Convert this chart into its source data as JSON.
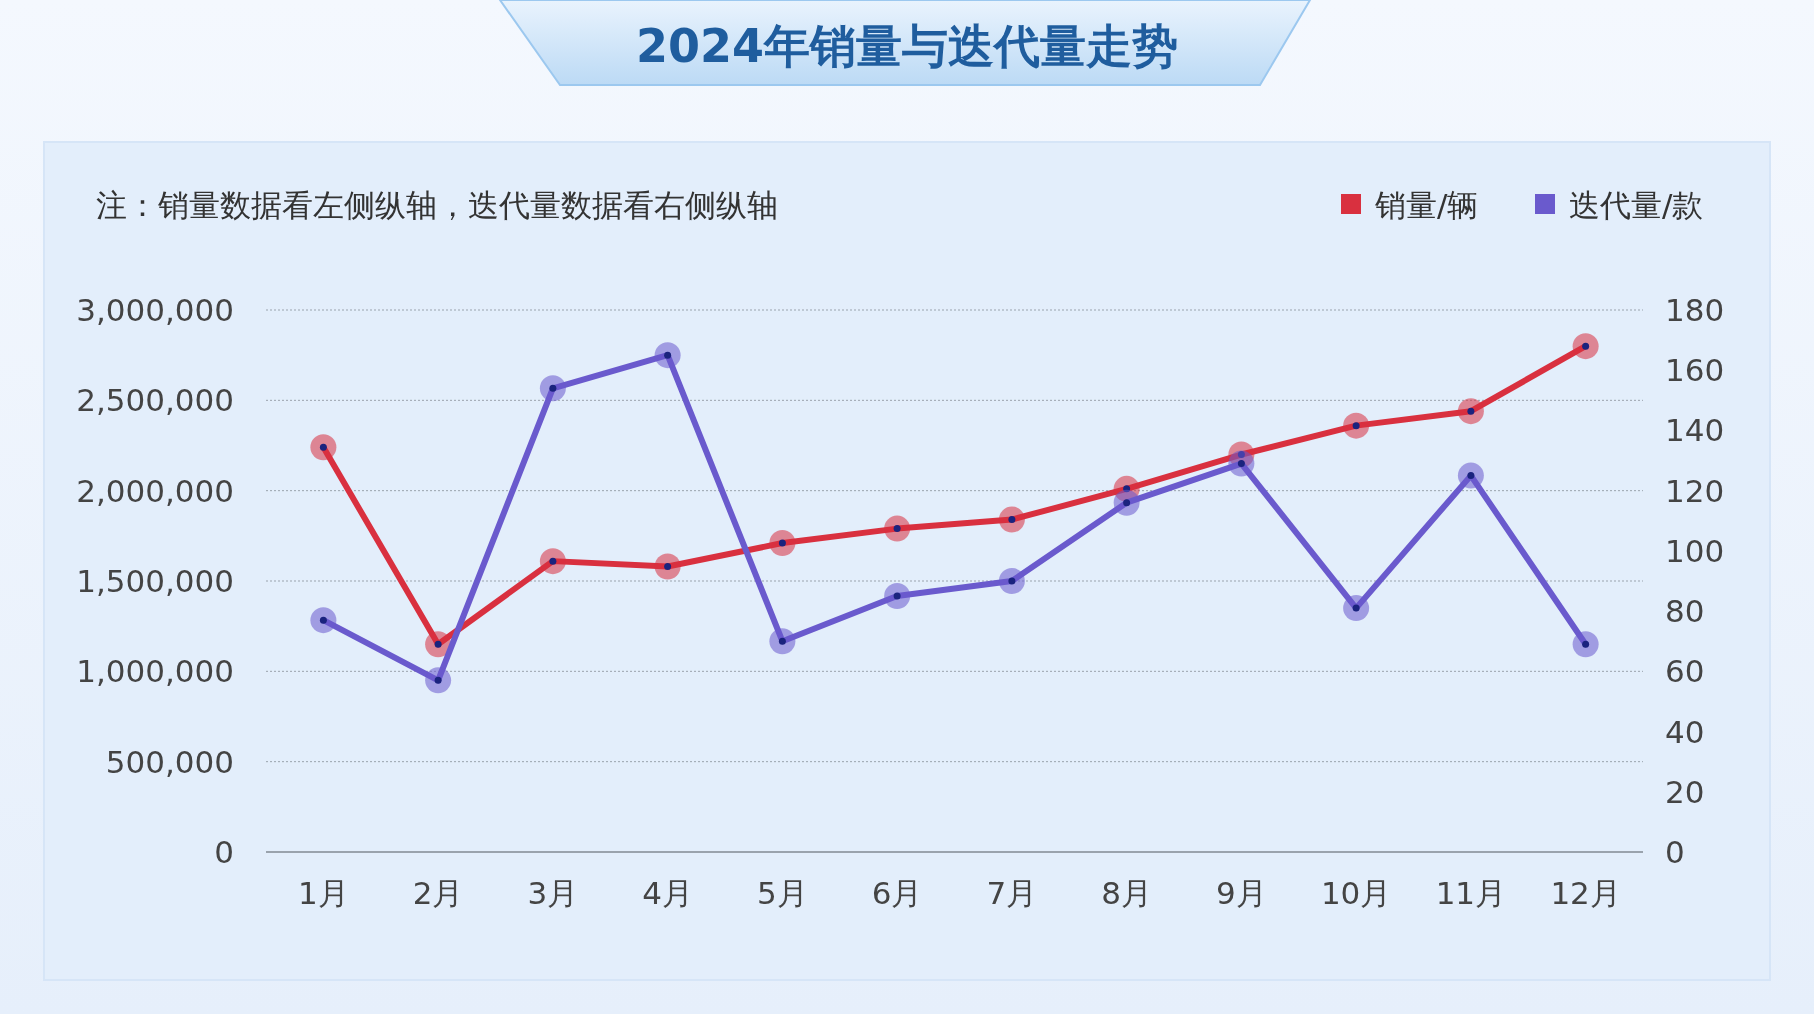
{
  "chart_data": {
    "type": "line",
    "title": "2024年销量与迭代量走势",
    "annotations": [
      "注：销量数据看左侧纵轴，迭代量数据看右侧纵轴"
    ],
    "categories": [
      "1月",
      "2月",
      "3月",
      "4月",
      "5月",
      "6月",
      "7月",
      "8月",
      "9月",
      "10月",
      "11月",
      "12月"
    ],
    "series": [
      {
        "name": "销量/辆",
        "color": "#d9303f",
        "values": [
          2240000,
          1150000,
          1610000,
          1580000,
          1710000,
          1790000,
          1840000,
          2010000,
          2200000,
          2360000,
          2440000,
          2800000
        ]
      },
      {
        "name": "迭代量/款",
        "color": "#6a5acd",
        "axis": "y2",
        "values": [
          77,
          57,
          154,
          165,
          70,
          85,
          90,
          116,
          129,
          81,
          125,
          69
        ]
      }
    ],
    "ylim": [
      0,
      3000000
    ],
    "yticks": [
      0,
      {
        "value": 500000,
        "label": "500,000"
      },
      {
        "value": 1000000,
        "label": "1,000,000"
      },
      {
        "value": 1500000,
        "label": "1,500,000"
      },
      {
        "value": 2000000,
        "label": "2,000,000"
      },
      {
        "value": 2500000,
        "label": "2,500,000"
      },
      {
        "value": 3000000,
        "label": "3,000,000"
      }
    ],
    "y2lim": [
      0,
      180
    ],
    "y2ticks": [
      0,
      20,
      40,
      60,
      80,
      100,
      120,
      140,
      160,
      180
    ],
    "grid": "y",
    "legend": "top right",
    "marker": "circle"
  }
}
